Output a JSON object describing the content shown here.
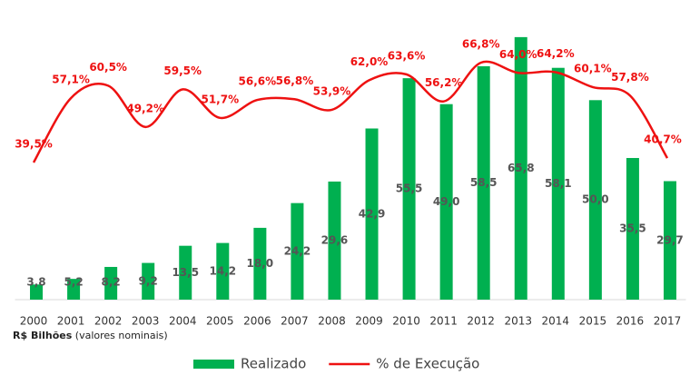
{
  "chart_data": {
    "type": "bar-line",
    "categories": [
      "2000",
      "2001",
      "2002",
      "2003",
      "2004",
      "2005",
      "2006",
      "2007",
      "2008",
      "2009",
      "2010",
      "2011",
      "2012",
      "2013",
      "2014",
      "2015",
      "2016",
      "2017"
    ],
    "series": [
      {
        "name": "Realizado",
        "type": "bar",
        "color": "#00b050",
        "values": [
          3.8,
          5.2,
          8.2,
          9.2,
          13.5,
          14.2,
          18.0,
          24.2,
          29.6,
          42.9,
          55.5,
          49.0,
          58.5,
          65.8,
          58.1,
          50.0,
          35.5,
          29.7
        ],
        "value_labels": [
          "3,8",
          "5,2",
          "8,2",
          "9,2",
          "13,5",
          "14,2",
          "18,0",
          "24,2",
          "29,6",
          "42,9",
          "55,5",
          "49,0",
          "58,5",
          "65,8",
          "58,1",
          "50,0",
          "35,5",
          "29,7"
        ]
      },
      {
        "name": "% de Execução",
        "type": "line",
        "axis": "y2",
        "color": "#ee1111",
        "values": [
          39.5,
          57.1,
          60.5,
          49.2,
          59.5,
          51.7,
          56.6,
          56.8,
          53.9,
          62.0,
          63.6,
          56.2,
          66.8,
          64.0,
          64.2,
          60.1,
          57.8,
          40.7
        ],
        "value_labels": [
          "39,5%",
          "57,1%",
          "60,5%",
          "49,2%",
          "59,5%",
          "51,7%",
          "56,6%",
          "56,8%",
          "53,9%",
          "62,0%",
          "63,6%",
          "56,2%",
          "66,8%",
          "64,0%",
          "64,2%",
          "60,1%",
          "57,8%",
          "40,7%"
        ]
      }
    ],
    "ylim": [
      0,
      66
    ],
    "y2lim": [
      2,
      74
    ],
    "note_bold": "R$ Bilhões",
    "note": "(valores nominais)",
    "legend": "bottom"
  }
}
